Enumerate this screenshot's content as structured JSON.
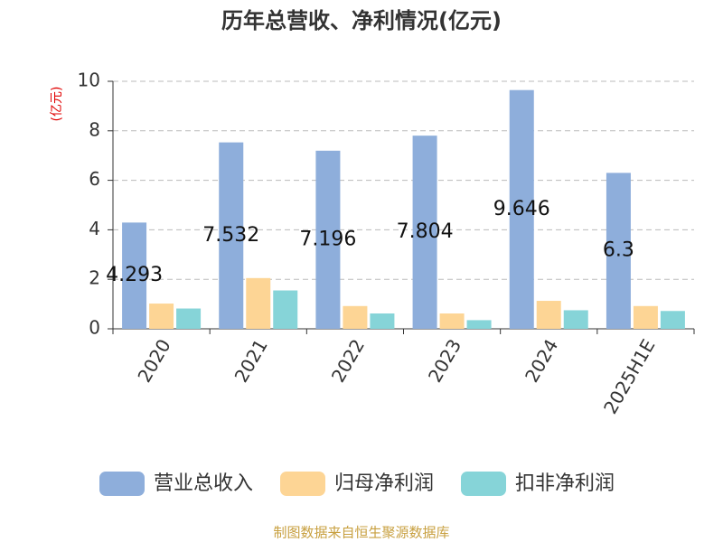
{
  "chart_data": {
    "type": "bar",
    "title": "历年总营收、净利情况(亿元)",
    "y_axis_label": "(亿元)",
    "categories": [
      "2020",
      "2021",
      "2022",
      "2023",
      "2024",
      "2025H1E"
    ],
    "series": [
      {
        "name": "营业总收入",
        "color": "#8eaedb",
        "values": [
          4.293,
          7.532,
          7.196,
          7.804,
          9.646,
          6.3
        ]
      },
      {
        "name": "归母净利润",
        "color": "#fdd595",
        "values": [
          1.02,
          2.05,
          0.92,
          0.62,
          1.13,
          0.92
        ]
      },
      {
        "name": "扣非净利润",
        "color": "#86d4d8",
        "values": [
          0.82,
          1.55,
          0.62,
          0.35,
          0.75,
          0.72
        ]
      }
    ],
    "data_label_series": 0,
    "ylim": [
      0,
      10
    ],
    "yticks": [
      0,
      2,
      4,
      6,
      8,
      10
    ],
    "grid": true,
    "legend": "bottom",
    "source": "制图数据来自恒生聚源数据库"
  }
}
